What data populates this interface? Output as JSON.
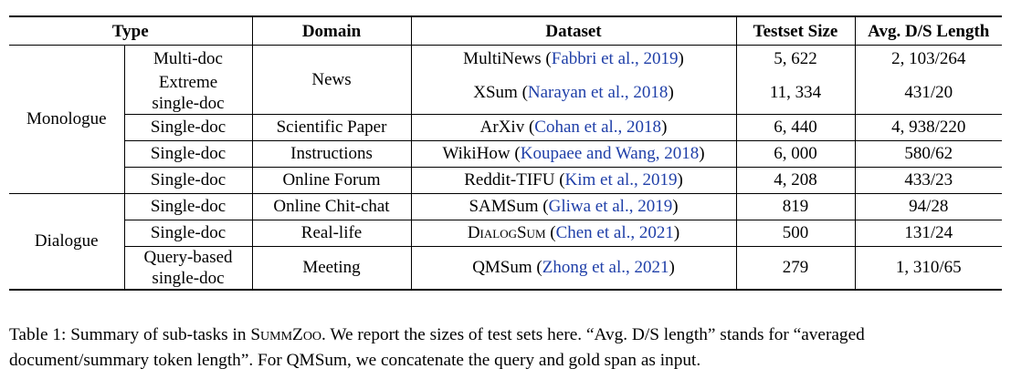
{
  "table": {
    "headers": [
      "Type",
      "Domain",
      "Dataset",
      "Testset Size",
      "Avg. D/S Length"
    ],
    "groups": {
      "monologue": "Monologue",
      "dialogue": "Dialogue"
    },
    "rows": [
      {
        "subtype": "Multi-doc",
        "subtype2": "",
        "domain": "News",
        "dataset": "MultiNews",
        "citation": "Fabbri et al., 2019",
        "size": "5, 622",
        "length": "2, 103/264"
      },
      {
        "subtype": "Extreme",
        "subtype2": "single-doc",
        "domain": "News",
        "dataset": "XSum",
        "citation": "Narayan et al., 2018",
        "size": "11, 334",
        "length": "431/20"
      },
      {
        "subtype": "Single-doc",
        "subtype2": "",
        "domain": "Scientific Paper",
        "dataset": "ArXiv",
        "citation": "Cohan et al., 2018",
        "size": "6, 440",
        "length": "4, 938/220"
      },
      {
        "subtype": "Single-doc",
        "subtype2": "",
        "domain": "Instructions",
        "dataset": "WikiHow",
        "citation": "Koupaee and Wang, 2018",
        "size": "6, 000",
        "length": "580/62"
      },
      {
        "subtype": "Single-doc",
        "subtype2": "",
        "domain": "Online Forum",
        "dataset": "Reddit-TIFU",
        "citation": "Kim et al., 2019",
        "size": "4, 208",
        "length": "433/23"
      },
      {
        "subtype": "Single-doc",
        "subtype2": "",
        "domain": "Online Chit-chat",
        "dataset": "SAMSum",
        "citation": "Gliwa et al., 2019",
        "size": "819",
        "length": "94/28"
      },
      {
        "subtype": "Single-doc",
        "subtype2": "",
        "domain": "Real-life",
        "dataset": "DialogSum",
        "citation": "Chen et al., 2021",
        "size": "500",
        "length": "131/24"
      },
      {
        "subtype": "Query-based",
        "subtype2": "single-doc",
        "domain": "Meeting",
        "dataset": "QMSum",
        "citation": "Zhong et al., 2021",
        "size": "279",
        "length": "1, 310/65"
      }
    ]
  },
  "caption": {
    "label": "Table 1:",
    "pre": "Summary of sub-tasks in",
    "name": "SummZoo",
    "post": ". We report the sizes of test sets here. “Avg. D/S length” stands for “averaged document/summary token length”. For QMSum, we concatenate the query and gold span as input."
  }
}
